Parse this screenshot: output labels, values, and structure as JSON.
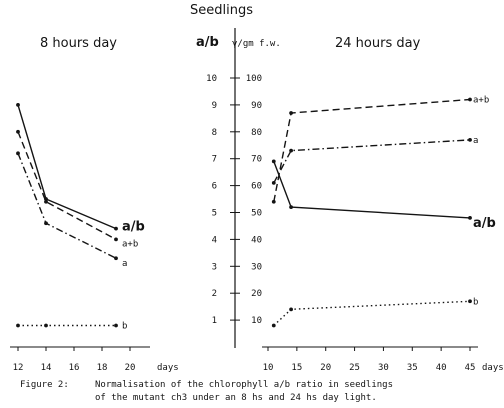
{
  "header": {
    "title": "Seedlings",
    "left_panel_title": "8 hours day",
    "right_panel_title": "24 hours day",
    "axis_label_ratio": "a/b",
    "axis_label_chl": "γ/gm f.w."
  },
  "caption": {
    "label": "Figure 2:",
    "line1": "Normalisation of the chlorophyll a/b ratio in seedlings",
    "line2": "of the mutant ch3 under an 8 hs and 24 hs day light."
  },
  "chart_data": [
    {
      "type": "line",
      "panel": "8 hours day",
      "xlabel": "days",
      "x_ticks": [
        12,
        14,
        16,
        18,
        20
      ],
      "xlim": [
        12,
        20
      ],
      "ylim_ratio": [
        0,
        10
      ],
      "ylim_chl": [
        0,
        100
      ],
      "series": [
        {
          "name": "a/b",
          "axis": "ratio",
          "style": "solid",
          "x": [
            12,
            14,
            19
          ],
          "values": [
            9.0,
            5.5,
            4.4
          ]
        },
        {
          "name": "a+b",
          "axis": "chl",
          "style": "dashed",
          "x": [
            12,
            14,
            19
          ],
          "values": [
            80,
            54,
            40
          ]
        },
        {
          "name": "a",
          "axis": "chl",
          "style": "dashdot",
          "x": [
            12,
            14,
            19
          ],
          "values": [
            72,
            46,
            33
          ]
        },
        {
          "name": "b",
          "axis": "chl",
          "style": "dotted",
          "x": [
            12,
            14,
            19
          ],
          "values": [
            8,
            8,
            8
          ]
        }
      ]
    },
    {
      "type": "line",
      "panel": "24 hours day",
      "xlabel": "days",
      "x_ticks": [
        10,
        15,
        20,
        25,
        30,
        35,
        40,
        45
      ],
      "xlim": [
        10,
        45
      ],
      "ylim_ratio": [
        0,
        10
      ],
      "ylim_chl": [
        0,
        100
      ],
      "series": [
        {
          "name": "a/b",
          "axis": "ratio",
          "style": "solid",
          "x": [
            11,
            14,
            45
          ],
          "values": [
            6.9,
            5.2,
            4.8
          ]
        },
        {
          "name": "a+b",
          "axis": "chl",
          "style": "dashed",
          "x": [
            11,
            14,
            45
          ],
          "values": [
            54,
            87,
            92
          ]
        },
        {
          "name": "a",
          "axis": "chl",
          "style": "dashdot",
          "x": [
            11,
            14,
            45
          ],
          "values": [
            61,
            73,
            77
          ]
        },
        {
          "name": "b",
          "axis": "chl",
          "style": "dotted",
          "x": [
            11,
            14,
            45
          ],
          "values": [
            8,
            14,
            17
          ]
        }
      ]
    }
  ],
  "shared_axis": {
    "ratio_ticks": [
      1,
      2,
      3,
      4,
      5,
      6,
      7,
      8,
      9,
      10
    ],
    "chl_ticks": [
      10,
      20,
      30,
      40,
      50,
      60,
      70,
      80,
      90,
      100
    ]
  },
  "colors": {
    "ink": "#141414",
    "paper": "#ffffff"
  }
}
